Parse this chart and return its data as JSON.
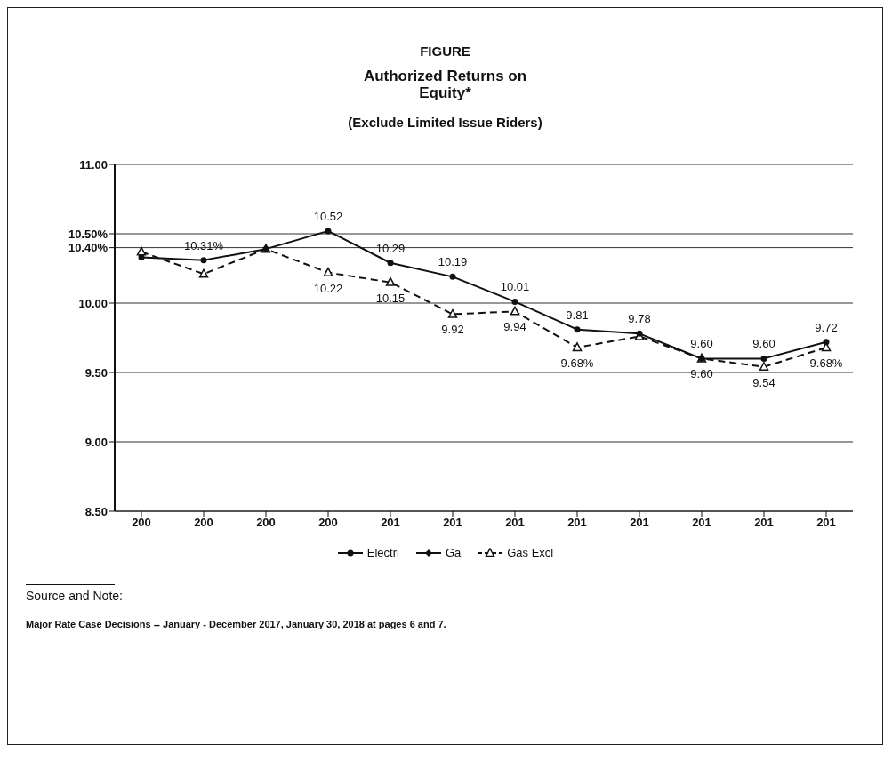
{
  "chart_data": {
    "type": "line",
    "title": "FIGURE",
    "subtitle": "Authorized Returns on\nEquity*\n\n(Exclude Limited Issue Riders)",
    "categories": [
      "200",
      "200",
      "200",
      "200",
      "201",
      "201",
      "201",
      "201",
      "201",
      "201",
      "201",
      "201"
    ],
    "series": [
      {
        "name": "Electri",
        "color": "#111111",
        "marker": "circle",
        "line_style": "solid",
        "values": [
          10.33,
          10.31,
          10.39,
          10.52,
          10.29,
          10.19,
          10.01,
          9.81,
          9.78,
          9.6,
          9.6,
          9.72
        ],
        "value_labels": [
          null,
          "10.31%",
          null,
          "10.52",
          "10.29",
          "10.19",
          "10.01",
          "9.81",
          "9.78",
          "9.60",
          "9.60",
          "9.72"
        ]
      },
      {
        "name": "Ga",
        "color": "#111111",
        "marker": "diamond",
        "line_style": "solid",
        "values": [
          null,
          null,
          null,
          null,
          null,
          null,
          null,
          null,
          null,
          null,
          null,
          null
        ]
      },
      {
        "name": "Gas Excl",
        "color": "#111111",
        "marker": "triangle",
        "line_style": "dashed",
        "values": [
          10.37,
          10.21,
          10.39,
          10.22,
          10.15,
          9.92,
          9.94,
          9.68,
          9.76,
          9.6,
          9.54,
          9.68
        ],
        "value_labels": [
          null,
          null,
          null,
          "10.22",
          "10.15",
          "9.92",
          "9.94",
          "9.68%",
          null,
          "9.60",
          "9.54",
          "9.68%"
        ]
      }
    ],
    "ylim": [
      8.5,
      11
    ],
    "yticks": [
      {
        "value": 8.5,
        "label": "8.50"
      },
      {
        "value": 9,
        "label": "9.00"
      },
      {
        "value": 9.5,
        "label": "9.50"
      },
      {
        "value": 10,
        "label": "10.00"
      },
      {
        "value": 10.4,
        "label": "10.40%"
      },
      {
        "value": 10.5,
        "label": "10.50%"
      },
      {
        "value": 11,
        "label": "11.00"
      }
    ],
    "grid": "y",
    "legend": "bottom",
    "annotations": [
      "Source and Note:",
      "Major Rate Case Decisions -- January - December 2017, January 30, 2018 at pages 6 and 7."
    ]
  }
}
